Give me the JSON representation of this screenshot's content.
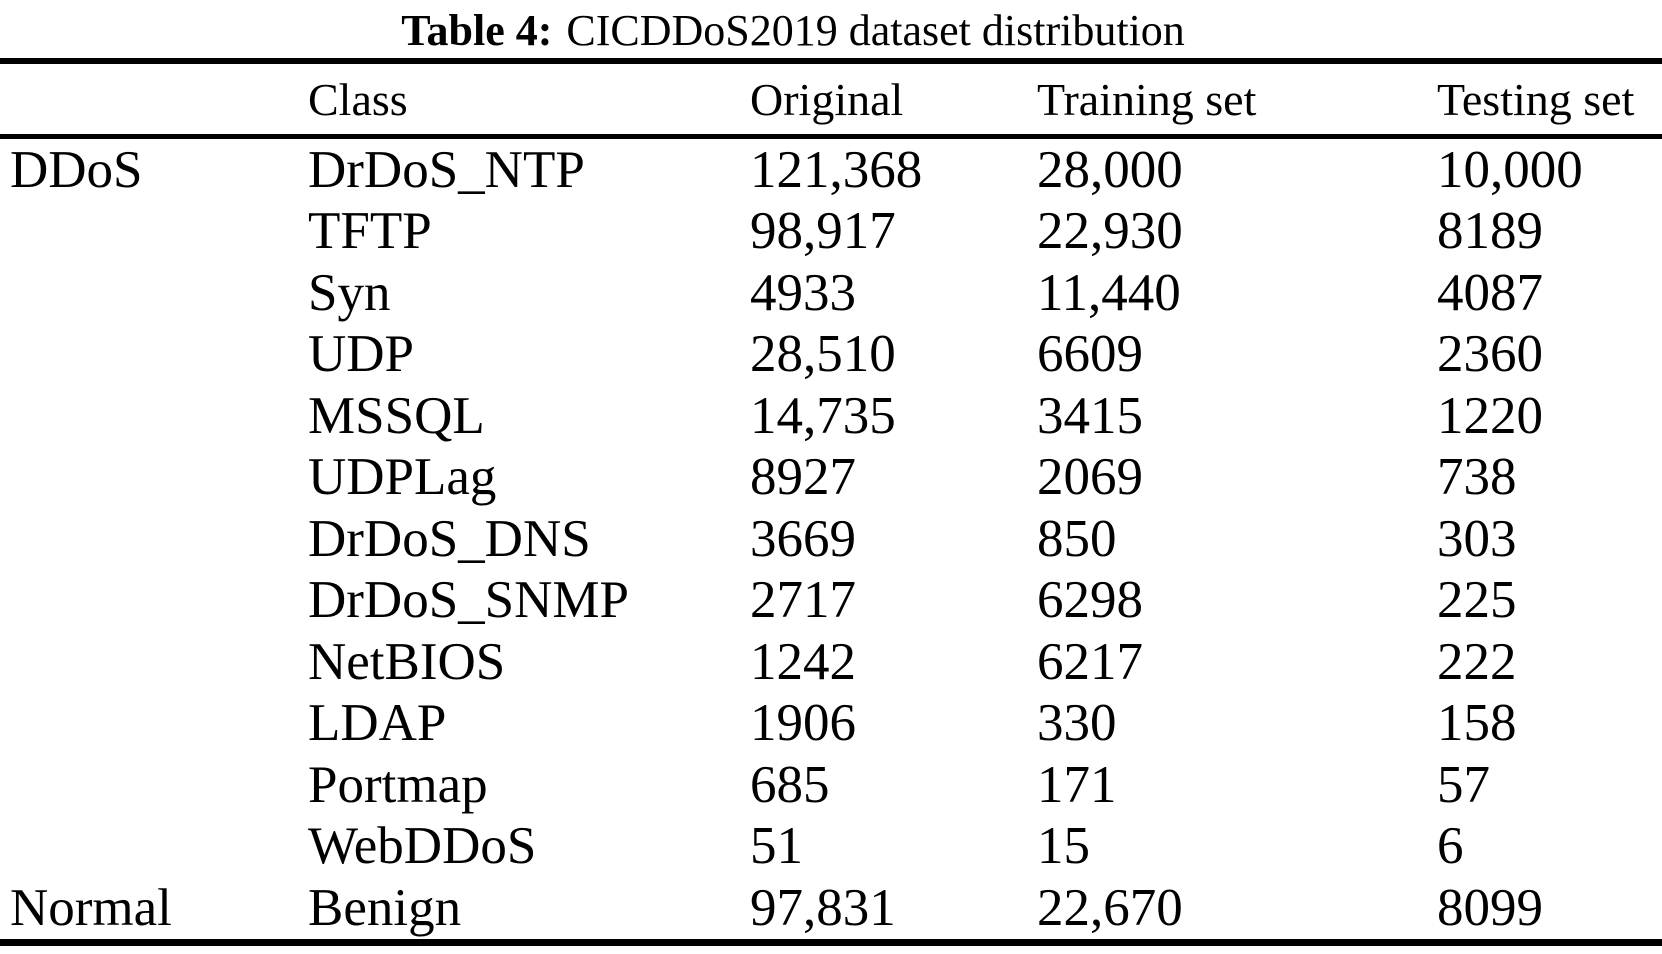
{
  "page": {
    "background_color": "#ffffff",
    "text_color": "#000000"
  },
  "title": {
    "prefix": "Table 4:",
    "text": "CICDDoS2019 dataset distribution"
  },
  "table": {
    "headers": {
      "group": "",
      "class": "Class",
      "original": "Original",
      "training": "Training set",
      "testing": "Testing set"
    },
    "rows": [
      {
        "group": "DDoS",
        "class": "DrDoS_NTP",
        "original": "121,368",
        "training": "28,000",
        "testing": "10,000"
      },
      {
        "group": "",
        "class": "TFTP",
        "original": "98,917",
        "training": "22,930",
        "testing": "8189"
      },
      {
        "group": "",
        "class": "Syn",
        "original": "4933",
        "training": "11,440",
        "testing": "4087"
      },
      {
        "group": "",
        "class": "UDP",
        "original": "28,510",
        "training": "6609",
        "testing": "2360"
      },
      {
        "group": "",
        "class": "MSSQL",
        "original": "14,735",
        "training": "3415",
        "testing": "1220"
      },
      {
        "group": "",
        "class": "UDPLag",
        "original": "8927",
        "training": "2069",
        "testing": "738"
      },
      {
        "group": "",
        "class": "DrDoS_DNS",
        "original": "3669",
        "training": "850",
        "testing": "303"
      },
      {
        "group": "",
        "class": "DrDoS_SNMP",
        "original": "2717",
        "training": "6298",
        "testing": "225"
      },
      {
        "group": "",
        "class": "NetBIOS",
        "original": "1242",
        "training": "6217",
        "testing": "222"
      },
      {
        "group": "",
        "class": "LDAP",
        "original": "1906",
        "training": "330",
        "testing": "158"
      },
      {
        "group": "",
        "class": "Portmap",
        "original": "685",
        "training": "171",
        "testing": "57"
      },
      {
        "group": "",
        "class": "WebDDoS",
        "original": "51",
        "training": "15",
        "testing": "6"
      },
      {
        "group": "Normal",
        "class": "Benign",
        "original": "97,831",
        "training": "22,670",
        "testing": "8099"
      }
    ]
  }
}
